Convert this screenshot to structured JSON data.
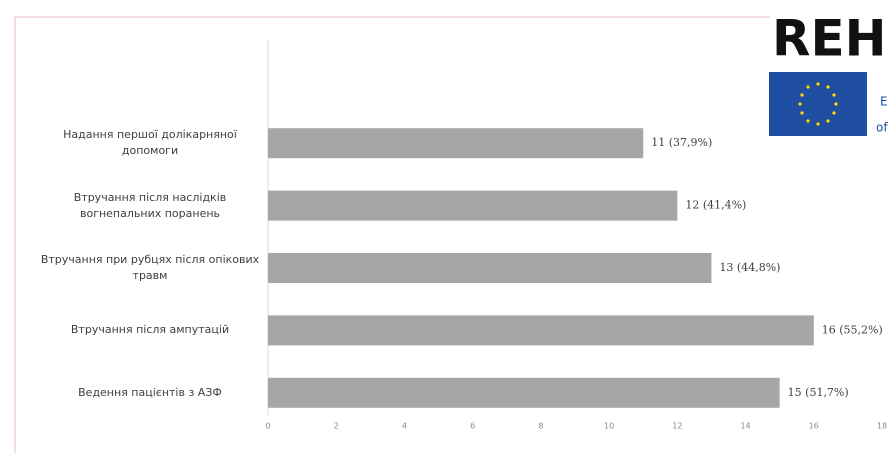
{
  "chart_data": {
    "type": "bar",
    "orientation": "horizontal",
    "categories": [
      "Надання першої долікарняної допомоги",
      "Втручання після наслідків вогнепальних поранень",
      "Втручання при рубцях після опікових травм",
      "Втручання після ампутацій",
      "Ведення пацієнтів з АЗФ"
    ],
    "values": [
      11,
      12,
      13,
      16,
      15
    ],
    "value_labels": [
      "11 (37,9%)",
      "12 (41,4%)",
      "13 (44,8%)",
      "16 (55,2%)",
      "15 (51,7%)"
    ],
    "color": "#a6a6a6",
    "xlim": [
      0,
      18
    ],
    "xticks": [
      0,
      2,
      4,
      6,
      8,
      10,
      12,
      14,
      16,
      18
    ],
    "grid": false
  },
  "logo": {
    "text": "REH",
    "subtext": [
      "E",
      "of"
    ]
  }
}
